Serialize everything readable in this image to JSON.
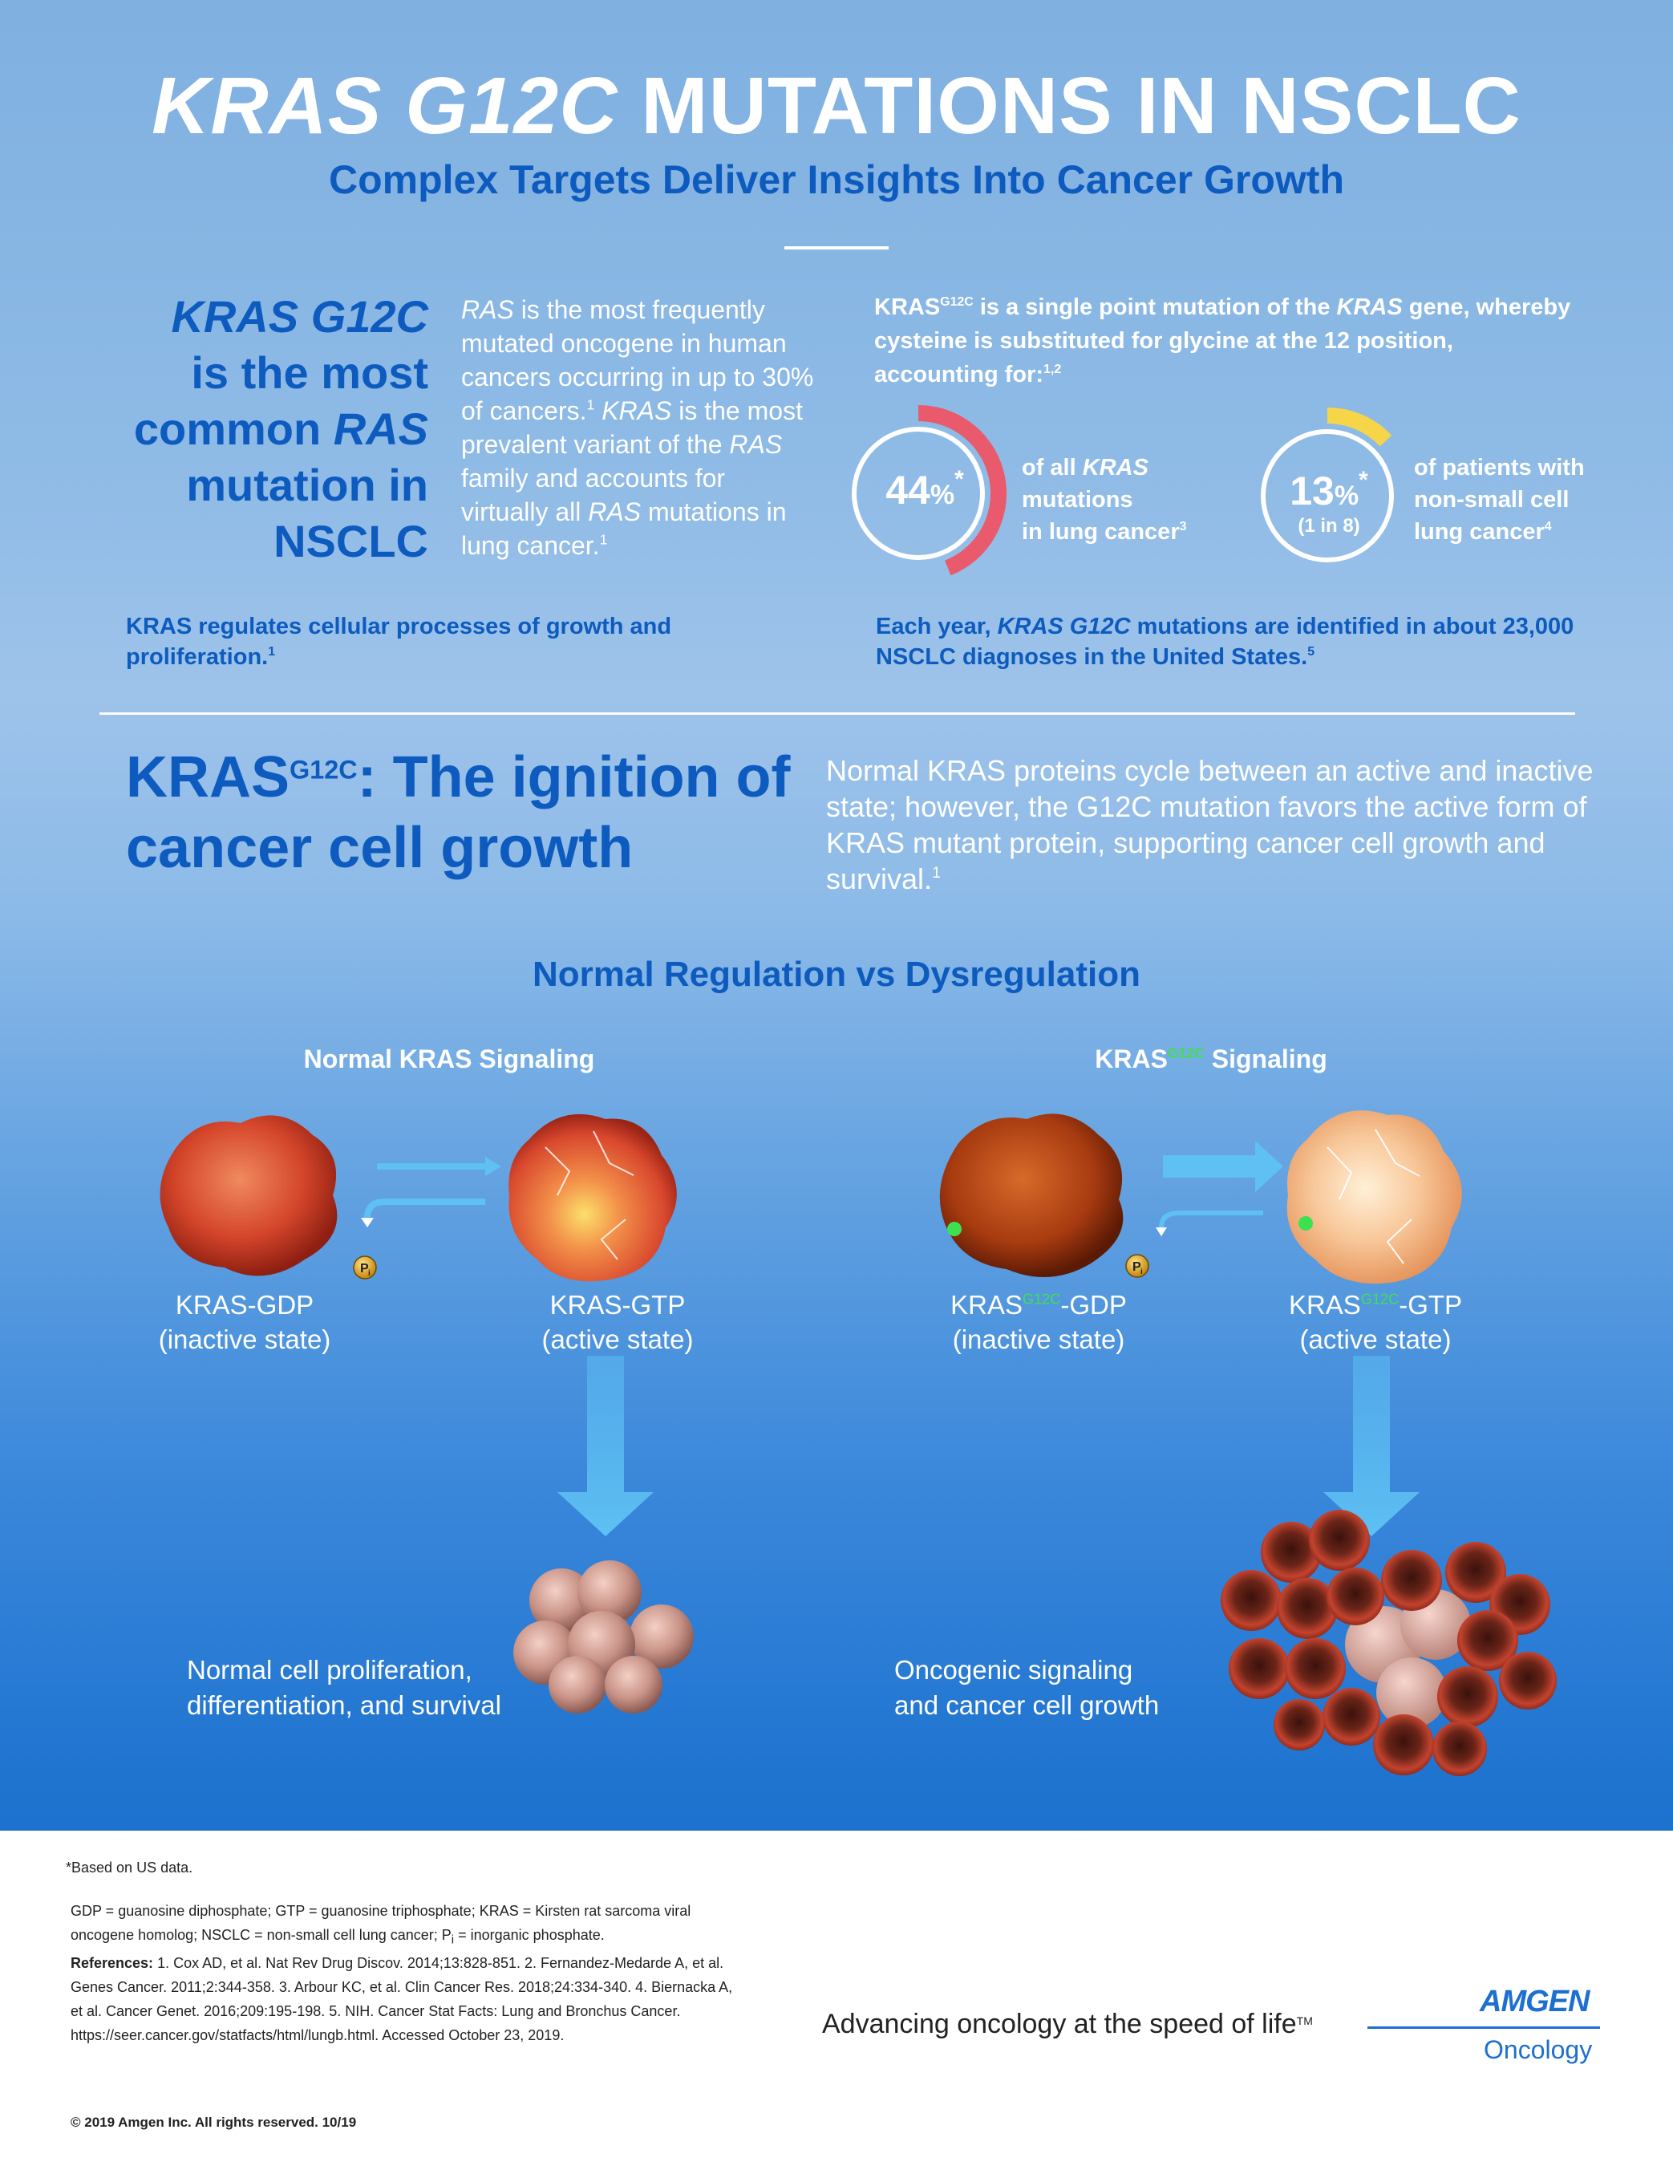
{
  "header": {
    "title_italic": "KRAS G12C",
    "title_rest": " MUTATIONS IN NSCLC",
    "subtitle": "Complex Targets Deliver Insights Into Cancer Growth"
  },
  "left_heading": {
    "line1": "KRAS G12C",
    "line2": "is the most",
    "line3a": "common ",
    "line3b": "RAS",
    "line4": "mutation in",
    "line5": "NSCLC"
  },
  "ras_paragraph": {
    "p1": "RAS",
    "p2": " is the most frequently mutated oncogene in human cancers occurring in up to 30% of cancers.",
    "ref1": "1",
    "p3": " KRAS",
    "p4": " is the most prevalent variant of the ",
    "p5": "RAS",
    "p6": " family and accounts for virtually all ",
    "p7": "RAS",
    "p8": " mutations in lung cancer.",
    "ref2": "1"
  },
  "g12c_paragraph": {
    "a": "KRAS",
    "sup": "G12C",
    "b": " is a single point mutation of the ",
    "c": "KRAS",
    "d": " gene, whereby cysteine is substituted for glycine at the 12 position, accounting for:",
    "refs": "1,2"
  },
  "stats": [
    {
      "value": "44",
      "unit": "%",
      "mark": "*",
      "fraction": 0.44,
      "arc_color": "#e95b6c",
      "desc1": "of all ",
      "desc1i": "KRAS",
      "desc2": "mutations",
      "desc3": "in lung cancer",
      "ref": "3"
    },
    {
      "value": "13",
      "unit": "%",
      "mark": "*",
      "sub": "(1 in 8)",
      "fraction": 0.13,
      "arc_color": "#f7d548",
      "desc1": "of patients with",
      "desc2": "non-small cell",
      "desc3": "lung cancer",
      "ref": "4"
    }
  ],
  "regulates": {
    "text": "KRAS regulates cellular processes of growth and proliferation.",
    "ref": "1"
  },
  "each_year": {
    "a": "Each year, ",
    "b": "KRAS G12C",
    "c": " mutations are identified in about 23,000 NSCLC diagnoses in the United States.",
    "ref": "5"
  },
  "ignition": {
    "a": "KRAS",
    "sup": "G12C",
    "b": ": The ignition of cancer cell growth"
  },
  "normal_paragraph": {
    "text": "Normal KRAS proteins cycle between an active and inactive state; however, the G12C mutation favors the active form of KRAS mutant protein, supporting cancer cell growth and survival.",
    "ref": "1"
  },
  "regulation_heading": "Normal Regulation vs Dysregulation",
  "normal_signaling": {
    "heading": "Normal KRAS Signaling",
    "gdp_label": "KRAS-GDP",
    "gdp_state": "(inactive state)",
    "gtp_label": "KRAS-GTP",
    "gtp_state": "(active state)",
    "pi": "P",
    "pi_sub": "i",
    "outcome1": "Normal cell proliferation,",
    "outcome2": "differentiation, and survival"
  },
  "mutant_signaling": {
    "heading_a": "KRAS",
    "heading_sup": "G12C",
    "heading_b": " Signaling",
    "gdp_a": "KRAS",
    "gdp_sup": "G12C",
    "gdp_b": "-GDP",
    "gdp_state": "(inactive state)",
    "gtp_a": "KRAS",
    "gtp_sup": "G12C",
    "gtp_b": "-GTP",
    "gtp_state": "(active state)",
    "pi": "P",
    "pi_sub": "i",
    "outcome1": "Oncogenic signaling",
    "outcome2": "and cancer cell growth"
  },
  "footer": {
    "based_on": "*Based on US data.",
    "abbrev1": "GDP = guanosine diphosphate; GTP = guanosine triphosphate; KRAS = Kirsten rat sarcoma viral",
    "abbrev2": "oncogene homolog; NSCLC = non-small cell lung cancer; P",
    "abbrev2_sub": "i",
    "abbrev2_end": " = inorganic phosphate.",
    "refs_label": "References:",
    "ref_line1": " 1. Cox AD, et al. Nat Rev Drug Discov. 2014;13:828-851. 2. Fernandez-Medarde A, et al.",
    "ref_line2": "Genes Cancer. 2011;2:344-358. 3. Arbour KC, et al. Clin Cancer Res. 2018;24:334-340. 4. Biernacka A,",
    "ref_line3": "et al. Cancer Genet. 2016;209:195-198. 5. NIH. Cancer Stat Facts: Lung and Bronchus Cancer.",
    "ref_line4": "https://seer.cancer.gov/statfacts/html/lungb.html. Accessed October 23, 2019.",
    "tagline": "Advancing oncology at the speed of life",
    "tm": "TM",
    "logo": "AMGEN",
    "logo_sub": "Oncology",
    "copyright": "© 2019 Amgen Inc.   All rights reserved.   10/19"
  },
  "colors": {
    "accent_blue": "#0d5bbe",
    "arc_red": "#e95b6c",
    "arc_yellow": "#f7d548",
    "mutation_green": "#3fe050"
  }
}
